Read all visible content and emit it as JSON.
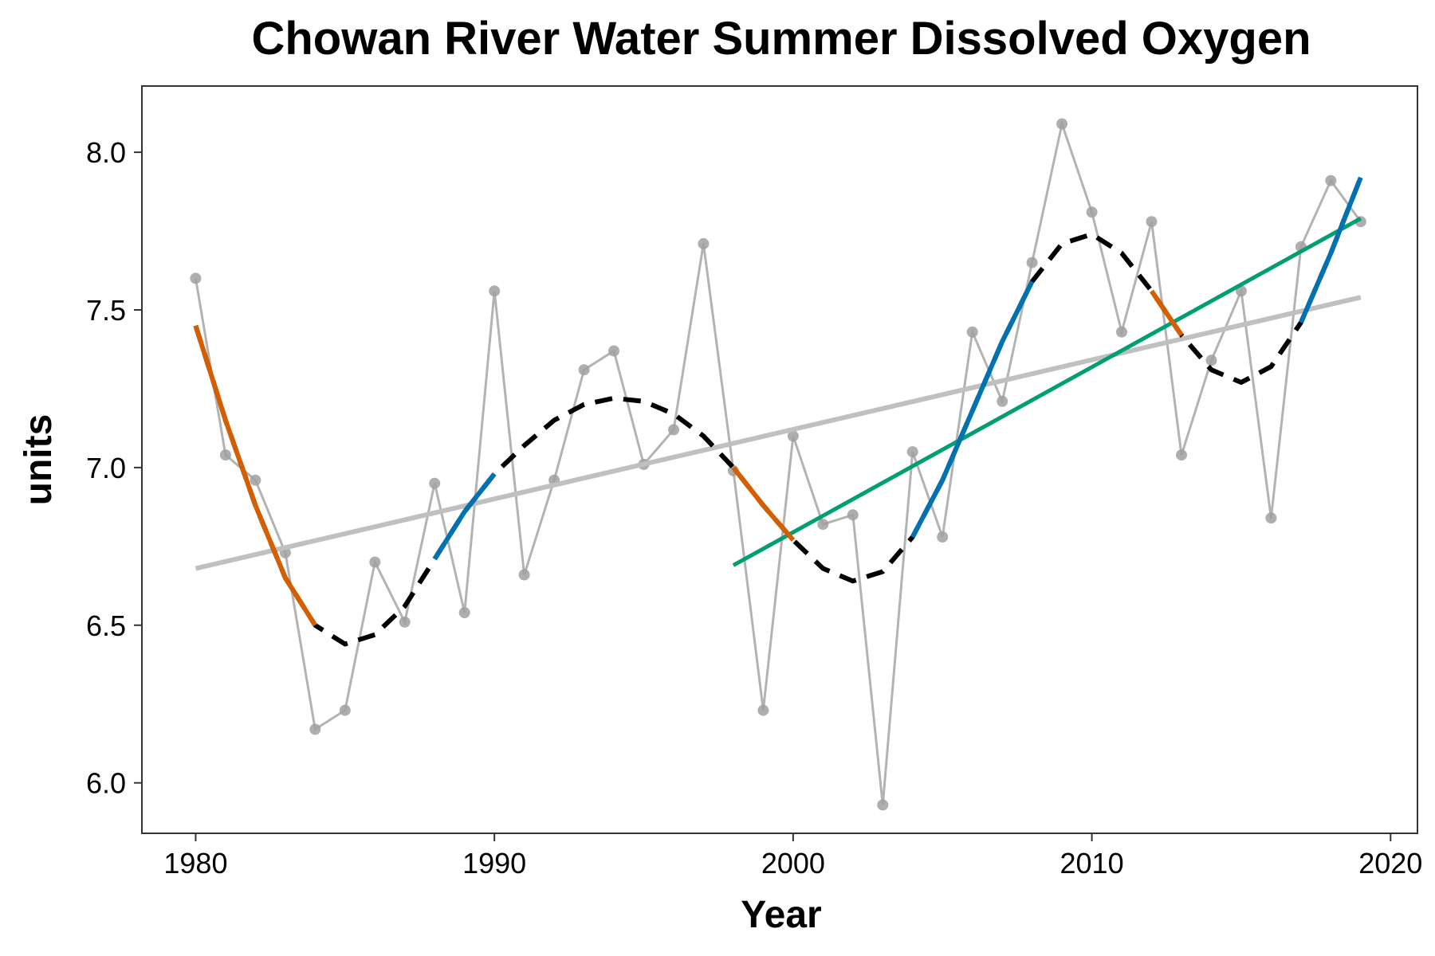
{
  "chart_data": {
    "type": "line",
    "title": "Chowan River Water Summer Dissolved Oxygen",
    "xlabel": "Year",
    "ylabel": "units",
    "xlim": [
      1978.2,
      2020.9
    ],
    "ylim": [
      5.84,
      8.21
    ],
    "x_ticks": [
      "1980",
      "1990",
      "2000",
      "2010",
      "2020"
    ],
    "y_ticks": [
      "6.0",
      "6.5",
      "7.0",
      "7.5",
      "8.0"
    ],
    "grid": false,
    "legend": "none",
    "colors": {
      "observed": "#b3b3b3",
      "observed_points": "#a0a0a0",
      "overall_trend": "#c0c0c0",
      "recent_trend": "#009e73",
      "smooth": "#000000",
      "decreasing": "#d55e00",
      "increasing": "#0072b2"
    },
    "series": [
      {
        "type": "observed",
        "x": [
          1980,
          1981,
          1982,
          1983,
          1984,
          1985,
          1986,
          1987,
          1988,
          1989,
          1990,
          1991,
          1992,
          1993,
          1994,
          1995,
          1996,
          1997,
          1998,
          1999,
          2000,
          2001,
          2002,
          2003,
          2004,
          2005,
          2006,
          2007,
          2008,
          2009,
          2010,
          2011,
          2012,
          2013,
          2014,
          2015,
          2016,
          2017,
          2018,
          2019
        ],
        "y": [
          7.6,
          7.04,
          6.96,
          6.73,
          6.17,
          6.23,
          6.7,
          6.51,
          6.95,
          6.54,
          7.56,
          6.66,
          6.96,
          7.31,
          7.37,
          7.01,
          7.12,
          7.71,
          6.99,
          6.23,
          7.1,
          6.82,
          6.85,
          5.93,
          7.05,
          6.78,
          7.43,
          7.21,
          7.65,
          8.09,
          7.81,
          7.43,
          7.78,
          7.04,
          7.34,
          7.56,
          6.84,
          7.7,
          7.91,
          7.78
        ]
      },
      {
        "type": "linear_trend",
        "x": [
          1980,
          2019
        ],
        "y": [
          6.68,
          7.54
        ]
      },
      {
        "type": "recent_trend",
        "x": [
          1998,
          2019
        ],
        "y": [
          6.69,
          7.79
        ]
      },
      {
        "type": "smooth",
        "x": [
          1980,
          1981,
          1982,
          1983,
          1984,
          1985,
          1986,
          1987,
          1988,
          1989,
          1990,
          1991,
          1992,
          1993,
          1994,
          1995,
          1996,
          1997,
          1998,
          1999,
          2000,
          2001,
          2002,
          2003,
          2004,
          2005,
          2006,
          2007,
          2008,
          2009,
          2010,
          2011,
          2012,
          2013,
          2014,
          2015,
          2016,
          2017,
          2018,
          2019
        ],
        "y": [
          7.45,
          7.15,
          6.88,
          6.65,
          6.5,
          6.44,
          6.47,
          6.56,
          6.71,
          6.86,
          6.98,
          7.07,
          7.15,
          7.2,
          7.22,
          7.21,
          7.17,
          7.1,
          7.0,
          6.88,
          6.77,
          6.68,
          6.64,
          6.67,
          6.78,
          6.96,
          7.18,
          7.4,
          7.59,
          7.71,
          7.74,
          7.68,
          7.56,
          7.42,
          7.31,
          7.27,
          7.32,
          7.46,
          7.68,
          7.92
        ]
      }
    ],
    "segments": [
      {
        "trend": "decreasing",
        "x": [
          1980,
          1984
        ]
      },
      {
        "trend": "increasing",
        "x": [
          1988,
          1990
        ]
      },
      {
        "trend": "decreasing",
        "x": [
          1998,
          2000
        ]
      },
      {
        "trend": "increasing",
        "x": [
          2004,
          2008
        ]
      },
      {
        "trend": "decreasing",
        "x": [
          2012,
          2013
        ]
      },
      {
        "trend": "increasing",
        "x": [
          2017,
          2019
        ]
      }
    ]
  }
}
